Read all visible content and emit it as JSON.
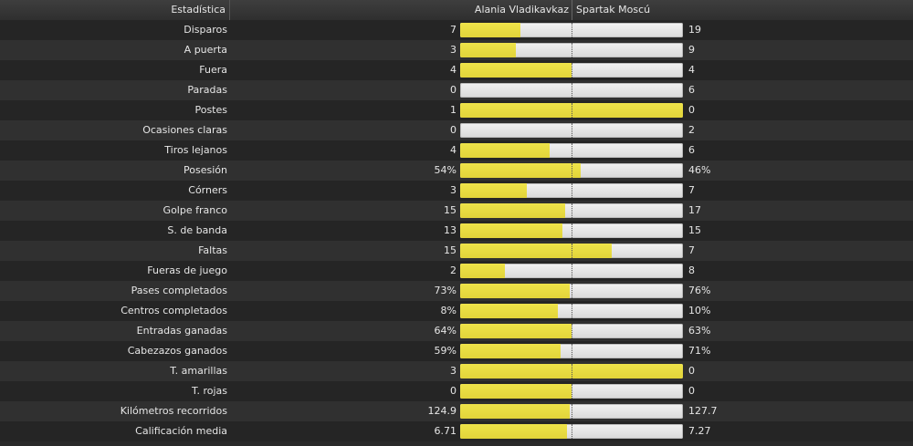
{
  "header": {
    "stat_title": "Estadística",
    "home_team": "Alania Vladikavkaz",
    "away_team": "Spartak Moscú"
  },
  "colors": {
    "home_bar": "#e2d43a",
    "away_bar": "#e6e6e6"
  },
  "stats": [
    {
      "label": "Disparos",
      "home": "7",
      "away": "19",
      "home_share": 0.27
    },
    {
      "label": "A puerta",
      "home": "3",
      "away": "9",
      "home_share": 0.25
    },
    {
      "label": "Fuera",
      "home": "4",
      "away": "4",
      "home_share": 0.5
    },
    {
      "label": "Paradas",
      "home": "0",
      "away": "6",
      "home_share": 0
    },
    {
      "label": "Postes",
      "home": "1",
      "away": "0",
      "home_share": 1
    },
    {
      "label": "Ocasiones claras",
      "home": "0",
      "away": "2",
      "home_share": 0
    },
    {
      "label": "Tiros lejanos",
      "home": "4",
      "away": "6",
      "home_share": 0.4
    },
    {
      "label": "Posesión",
      "home": "54%",
      "away": "46%",
      "home_share": 0.54
    },
    {
      "label": "Córners",
      "home": "3",
      "away": "7",
      "home_share": 0.3
    },
    {
      "label": "Golpe franco",
      "home": "15",
      "away": "17",
      "home_share": 0.47
    },
    {
      "label": "S. de banda",
      "home": "13",
      "away": "15",
      "home_share": 0.46
    },
    {
      "label": "Faltas",
      "home": "15",
      "away": "7",
      "home_share": 0.68
    },
    {
      "label": "Fueras de juego",
      "home": "2",
      "away": "8",
      "home_share": 0.2
    },
    {
      "label": "Pases completados",
      "home": "73%",
      "away": "76%",
      "home_share": 0.49
    },
    {
      "label": "Centros completados",
      "home": "8%",
      "away": "10%",
      "home_share": 0.44
    },
    {
      "label": "Entradas ganadas",
      "home": "64%",
      "away": "63%",
      "home_share": 0.5
    },
    {
      "label": "Cabezazos ganados",
      "home": "59%",
      "away": "71%",
      "home_share": 0.45
    },
    {
      "label": "T. amarillas",
      "home": "3",
      "away": "0",
      "home_share": 1
    },
    {
      "label": "T. rojas",
      "home": "0",
      "away": "0",
      "home_share": 0.5
    },
    {
      "label": "Kilómetros recorridos",
      "home": "124.9",
      "away": "127.7",
      "home_share": 0.49
    },
    {
      "label": "Calificación media",
      "home": "6.71",
      "away": "7.27",
      "home_share": 0.48
    }
  ]
}
